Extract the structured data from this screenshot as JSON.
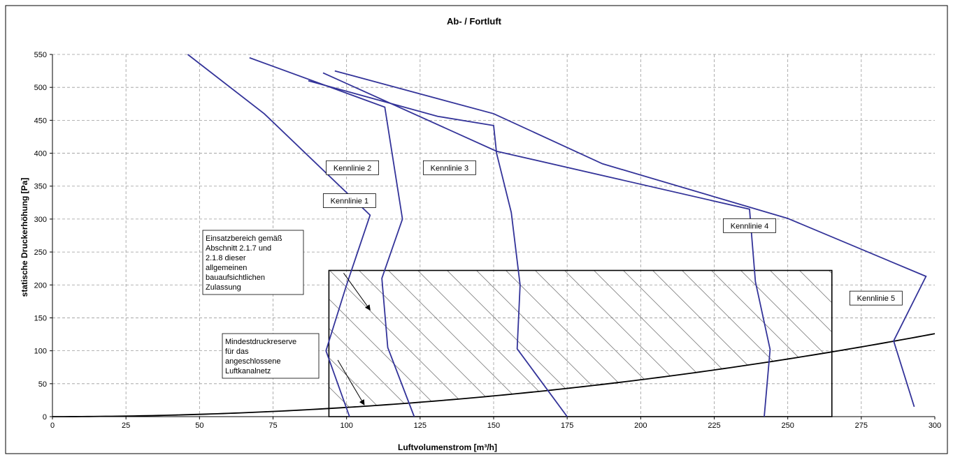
{
  "chart_data": {
    "type": "line",
    "title": "Ab- / Fortluft",
    "xlabel": "Luftvolumenstrom [m³/h]",
    "ylabel": "statische Druckerhöhung [Pa]",
    "xlim": [
      0,
      300
    ],
    "ylim": [
      0,
      550
    ],
    "xticks": [
      0,
      25,
      50,
      75,
      100,
      125,
      150,
      175,
      200,
      225,
      250,
      275,
      300
    ],
    "yticks": [
      0,
      50,
      100,
      150,
      200,
      250,
      300,
      350,
      400,
      450,
      500,
      550
    ],
    "grid": "dashed",
    "series_color": "#333399",
    "series": [
      {
        "label_text": "Kennlinie 1",
        "points": [
          [
            46,
            550
          ],
          [
            72,
            460
          ],
          [
            108,
            306
          ],
          [
            100,
            200
          ],
          [
            93,
            100
          ],
          [
            101,
            0
          ]
        ]
      },
      {
        "label_text": "Kennlinie 2",
        "points": [
          [
            67,
            545
          ],
          [
            113,
            470
          ],
          [
            119,
            300
          ],
          [
            112,
            210
          ],
          [
            114,
            105
          ],
          [
            123,
            0
          ]
        ]
      },
      {
        "label_text": "Kennlinie 3",
        "points": [
          [
            87,
            510
          ],
          [
            131,
            456
          ],
          [
            150,
            442
          ],
          [
            151,
            400
          ],
          [
            156,
            310
          ],
          [
            159,
            200
          ],
          [
            158,
            103
          ],
          [
            175,
            0
          ]
        ]
      },
      {
        "label_text": "Kennlinie 4",
        "points": [
          [
            92,
            522
          ],
          [
            151,
            403
          ],
          [
            237,
            315
          ],
          [
            239,
            205
          ],
          [
            244,
            102
          ],
          [
            242,
            0
          ]
        ]
      },
      {
        "label_text": "Kennlinie 5",
        "points": [
          [
            96,
            525
          ],
          [
            150,
            460
          ],
          [
            187,
            384
          ],
          [
            250,
            301
          ],
          [
            297,
            213
          ],
          [
            286,
            115
          ],
          [
            293,
            15
          ]
        ]
      }
    ],
    "system_curve": {
      "label_text": "Mindestdruckreserve für das angeschlossene Luftkanalnetz",
      "k": 0.0014,
      "x_range": [
        0,
        300
      ]
    },
    "operating_area": {
      "label_text": "Einsatzbereich gemäß Abschnitt 2.1.7 und 2.1.8 dieser allgemeinen bauaufsichtlichen Zulassung",
      "x_range": [
        94,
        265
      ],
      "y_max": 222
    },
    "series_labels": [
      {
        "text": "Kennlinie 1",
        "x": 101,
        "y": 328
      },
      {
        "text": "Kennlinie 2",
        "x": 102,
        "y": 378
      },
      {
        "text": "Kennlinie 3",
        "x": 135,
        "y": 378
      },
      {
        "text": "Kennlinie 4",
        "x": 237,
        "y": 290
      },
      {
        "text": "Kennlinie 5",
        "x": 280,
        "y": 180
      }
    ],
    "annotation_lines": {
      "area_lines": [
        "Einsatzbereich  gemäß",
        "Abschnitt 2.1.7 und",
        "2.1.8 dieser",
        "allgemeinen",
        "bauaufsichtlichen",
        "Zulassung"
      ],
      "area_pointer": {
        "from": [
          99,
          218
        ],
        "to": [
          108,
          162
        ]
      },
      "reserve_lines": [
        "Mindestdruckreserve",
        "für das",
        "angeschlossene",
        "Luftkanalnetz"
      ],
      "reserve_pointer": {
        "from": [
          97,
          86
        ],
        "to": [
          106,
          18
        ]
      }
    }
  }
}
